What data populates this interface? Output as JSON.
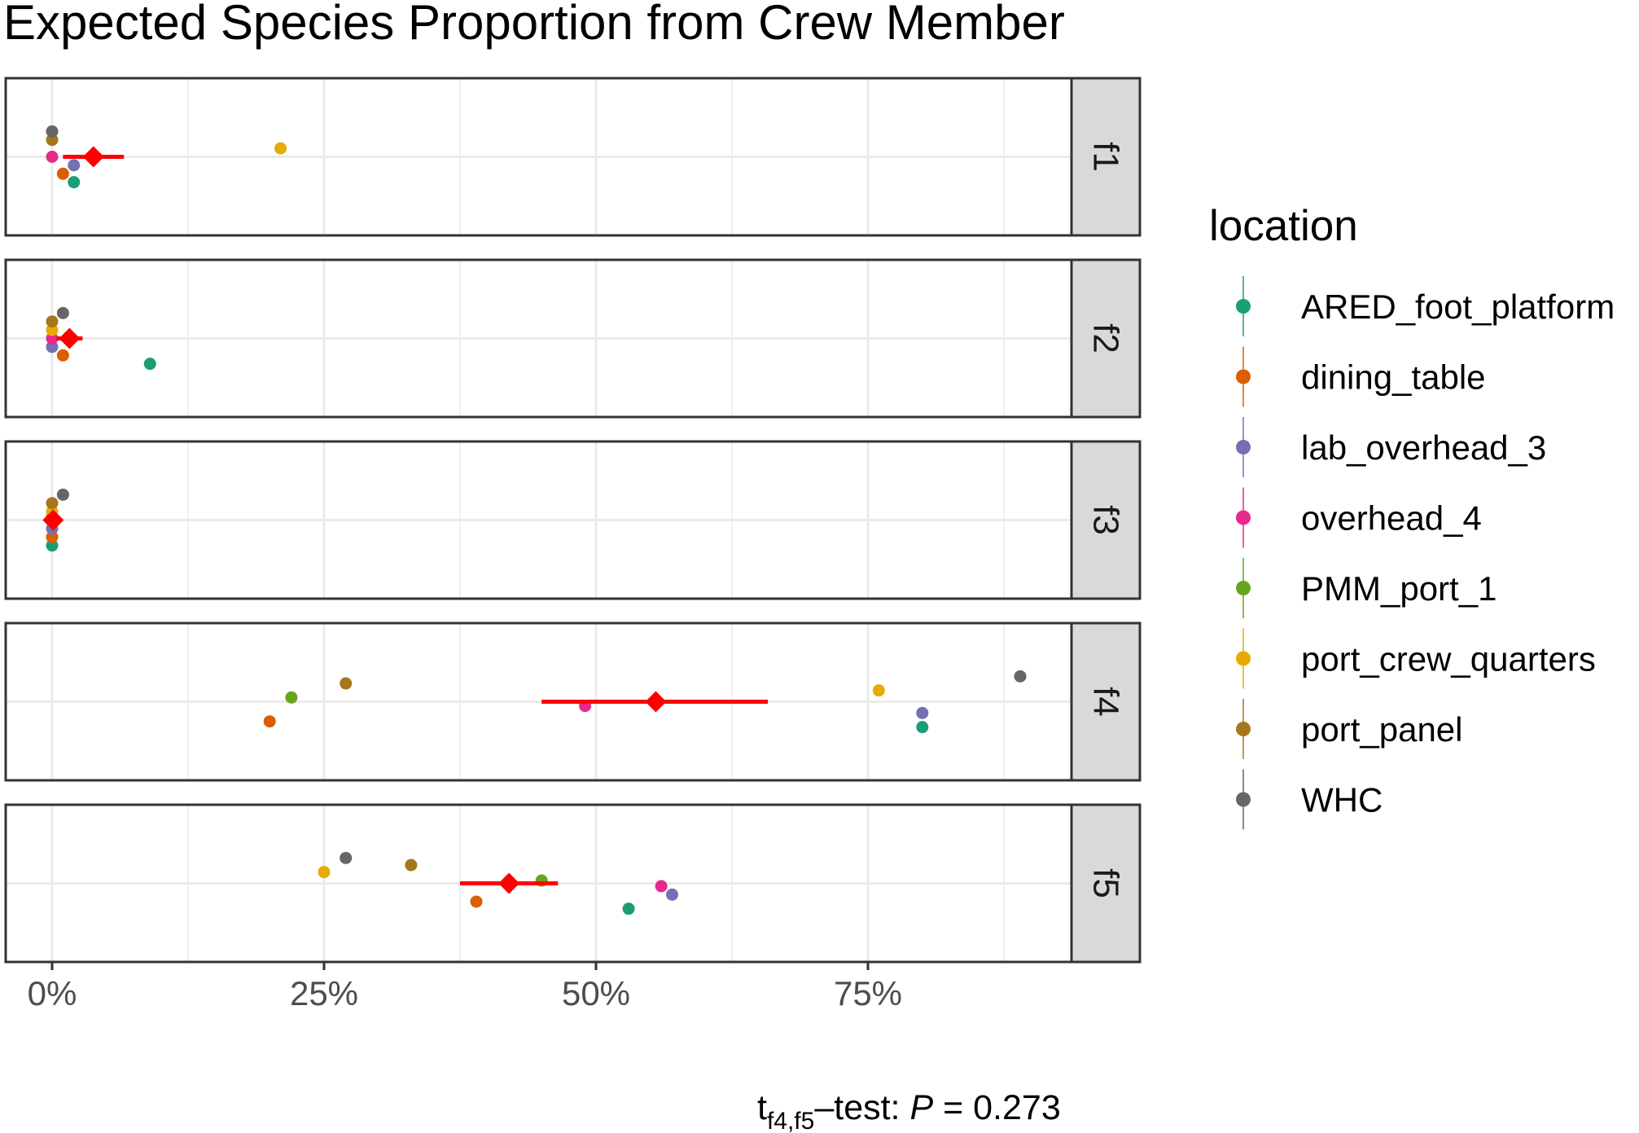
{
  "chart_data": {
    "type": "scatter",
    "title": "Expected Species Proportion from Crew Member",
    "xlabel": "",
    "ylabel": "",
    "x_tick_labels": [
      "0%",
      "25%",
      "50%",
      "75%"
    ],
    "x_ticks": [
      0,
      25,
      50,
      75
    ],
    "x_minor_ticks": [
      12.5,
      37.5,
      62.5,
      87.5
    ],
    "xlim": [
      -4.5,
      100
    ],
    "grid": true,
    "legend": {
      "title": "location",
      "position": "right"
    },
    "series": [
      {
        "name": "ARED_foot_platform",
        "color": "#1b9e77"
      },
      {
        "name": "dining_table",
        "color": "#d95f02"
      },
      {
        "name": "lab_overhead_3",
        "color": "#7570b3"
      },
      {
        "name": "overhead_4",
        "color": "#e7298a"
      },
      {
        "name": "PMM_port_1",
        "color": "#66a61e"
      },
      {
        "name": "port_crew_quarters",
        "color": "#e6ab02"
      },
      {
        "name": "port_panel",
        "color": "#a6761d"
      },
      {
        "name": "WHC",
        "color": "#666666"
      }
    ],
    "mean_color": "#ff0000",
    "facets": [
      {
        "label": "f1",
        "mean": 3.8,
        "ci": [
          1.0,
          6.6
        ],
        "points": [
          {
            "series": "ARED_foot_platform",
            "x": 2.0,
            "jitter": -0.18
          },
          {
            "series": "dining_table",
            "x": 1.0,
            "jitter": -0.12
          },
          {
            "series": "lab_overhead_3",
            "x": 2.0,
            "jitter": -0.06
          },
          {
            "series": "overhead_4",
            "x": 0.0,
            "jitter": 0.0
          },
          {
            "series": "port_crew_quarters",
            "x": 21.0,
            "jitter": 0.06
          },
          {
            "series": "port_panel",
            "x": 0.0,
            "jitter": 0.12
          },
          {
            "series": "WHC",
            "x": 0.0,
            "jitter": 0.18
          }
        ]
      },
      {
        "label": "f2",
        "mean": 1.6,
        "ci": [
          0.4,
          2.8
        ],
        "points": [
          {
            "series": "ARED_foot_platform",
            "x": 9.0,
            "jitter": -0.18
          },
          {
            "series": "dining_table",
            "x": 1.0,
            "jitter": -0.12
          },
          {
            "series": "lab_overhead_3",
            "x": 0.0,
            "jitter": -0.06
          },
          {
            "series": "overhead_4",
            "x": 0.0,
            "jitter": 0.0
          },
          {
            "series": "port_crew_quarters",
            "x": 0.0,
            "jitter": 0.06
          },
          {
            "series": "port_panel",
            "x": 0.0,
            "jitter": 0.12
          },
          {
            "series": "WHC",
            "x": 1.0,
            "jitter": 0.18
          }
        ]
      },
      {
        "label": "f3",
        "mean": 0.1,
        "ci": [
          -0.3,
          0.5
        ],
        "points": [
          {
            "series": "ARED_foot_platform",
            "x": 0.0,
            "jitter": -0.18
          },
          {
            "series": "dining_table",
            "x": 0.0,
            "jitter": -0.12
          },
          {
            "series": "lab_overhead_3",
            "x": 0.0,
            "jitter": -0.06
          },
          {
            "series": "overhead_4",
            "x": 0.0,
            "jitter": 0.0
          },
          {
            "series": "PMM_port_1",
            "x": 0.0,
            "jitter": 0.03
          },
          {
            "series": "port_crew_quarters",
            "x": 0.0,
            "jitter": 0.06
          },
          {
            "series": "port_panel",
            "x": 0.0,
            "jitter": 0.12
          },
          {
            "series": "WHC",
            "x": 1.0,
            "jitter": 0.18
          }
        ]
      },
      {
        "label": "f4",
        "mean": 55.5,
        "ci": [
          45.0,
          65.8
        ],
        "points": [
          {
            "series": "ARED_foot_platform",
            "x": 80.0,
            "jitter": -0.18
          },
          {
            "series": "dining_table",
            "x": 20.0,
            "jitter": -0.14
          },
          {
            "series": "lab_overhead_3",
            "x": 80.0,
            "jitter": -0.08
          },
          {
            "series": "overhead_4",
            "x": 49.0,
            "jitter": -0.03
          },
          {
            "series": "PMM_port_1",
            "x": 22.0,
            "jitter": 0.03
          },
          {
            "series": "port_crew_quarters",
            "x": 76.0,
            "jitter": 0.08
          },
          {
            "series": "port_panel",
            "x": 27.0,
            "jitter": 0.13
          },
          {
            "series": "WHC",
            "x": 89.0,
            "jitter": 0.18
          }
        ]
      },
      {
        "label": "f5",
        "mean": 42.0,
        "ci": [
          37.5,
          46.5
        ],
        "points": [
          {
            "series": "ARED_foot_platform",
            "x": 53.0,
            "jitter": -0.18
          },
          {
            "series": "dining_table",
            "x": 39.0,
            "jitter": -0.13
          },
          {
            "series": "lab_overhead_3",
            "x": 57.0,
            "jitter": -0.08
          },
          {
            "series": "overhead_4",
            "x": 56.0,
            "jitter": -0.02
          },
          {
            "series": "PMM_port_1",
            "x": 45.0,
            "jitter": 0.02
          },
          {
            "series": "port_crew_quarters",
            "x": 25.0,
            "jitter": 0.08
          },
          {
            "series": "port_panel",
            "x": 33.0,
            "jitter": 0.13
          },
          {
            "series": "WHC",
            "x": 27.0,
            "jitter": 0.18
          }
        ]
      }
    ],
    "caption": {
      "prefix": "t",
      "subscript": "f4,f5",
      "middle": "–test: ",
      "p_label": "P",
      "value": " = 0.273"
    }
  }
}
